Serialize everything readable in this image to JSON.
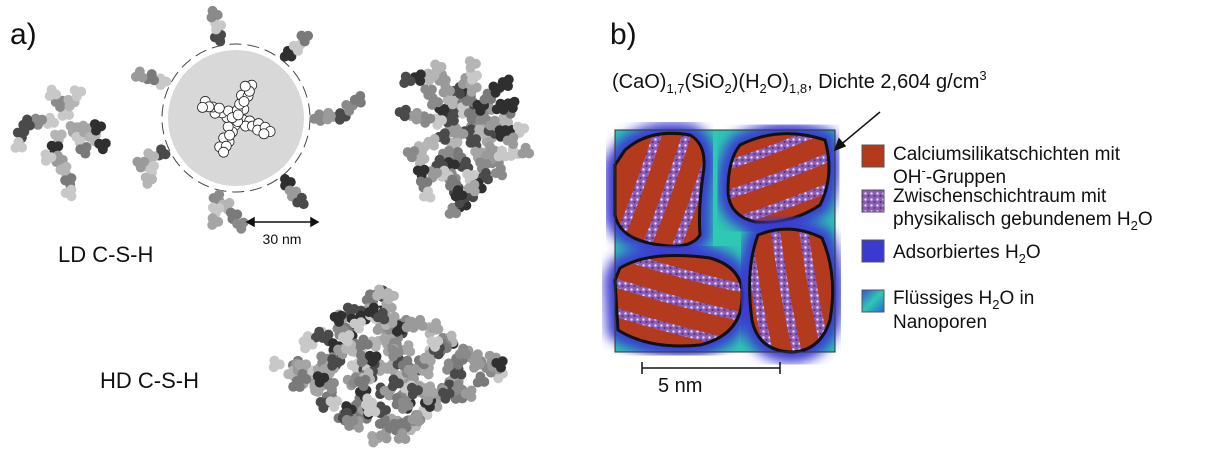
{
  "panel_a": {
    "label": "a)",
    "ld_label": "LD C-S-H",
    "hd_label": "HD C-S-H",
    "scale_bar": "30 nm"
  },
  "panel_b": {
    "label": "b)",
    "formula": [
      "(CaO)",
      "1,7",
      "(SiO",
      "2",
      ")(H",
      "2",
      "O)",
      "1,8",
      ", Dichte 2,604 g/cm",
      "3"
    ],
    "scale_bar": "5 nm",
    "legend": [
      {
        "lines": [
          [
            "Calciumsilikatschichten mit"
          ],
          [
            "OH",
            "-",
            "-Gruppen"
          ]
        ]
      },
      {
        "lines": [
          [
            "Zwischenschichtraum mit"
          ],
          [
            "physikalisch gebundenem H",
            "2",
            "O"
          ]
        ]
      },
      {
        "lines": [
          [
            "Adsorbiertes H",
            "2",
            "O"
          ]
        ]
      },
      {
        "lines": [
          [
            "Flüssiges H",
            "2",
            "O in"
          ],
          [
            "Nanoporen"
          ]
        ]
      }
    ]
  }
}
